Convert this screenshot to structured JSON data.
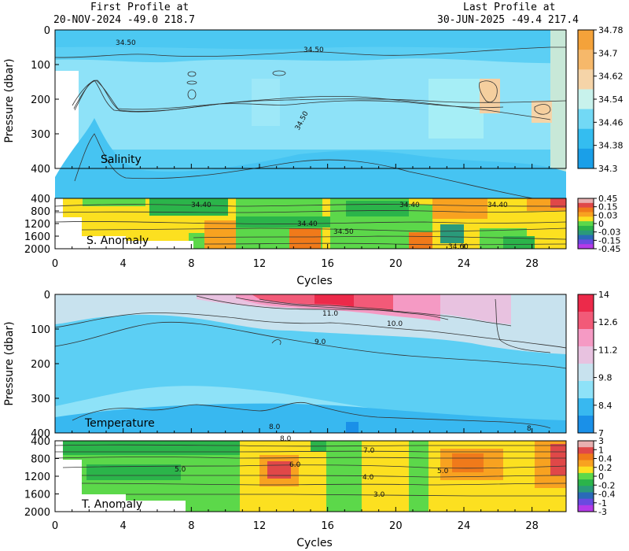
{
  "header": {
    "first_title": "First Profile at",
    "first_info": "20-NOV-2024    -49.0  218.7",
    "last_title": "Last Profile at",
    "last_info": "30-JUN-2025    -49.4  217.4"
  },
  "colors": {
    "frame": "#000000",
    "contour": "#333333"
  },
  "chart_data": [
    {
      "type": "heatmap",
      "title": "Salinity",
      "xlabel": "Cycles",
      "ylabel": "Pressure (dbar)",
      "xlim": [
        0,
        30
      ],
      "ylim": [
        400,
        0
      ],
      "xticks": [
        "0",
        "4",
        "8",
        "12",
        "16",
        "20",
        "24",
        "28"
      ],
      "yticks": [
        "0",
        "100",
        "200",
        "300",
        "400"
      ],
      "colorbar": {
        "ticks": [
          "34.78",
          "34.7",
          "34.62",
          "34.54",
          "34.46",
          "34.38",
          "34.3"
        ],
        "colors": [
          "#f4a23a",
          "#f6b86a",
          "#f5d4a8",
          "#c8f2ec",
          "#72d9f5",
          "#34bdf0",
          "#1a9fe8"
        ]
      },
      "contour_labels": [
        "34.50",
        "34.50",
        "34.50"
      ]
    },
    {
      "type": "heatmap",
      "title": "S. Anomaly",
      "ylabel": "",
      "xlim": [
        0,
        30
      ],
      "ylim": [
        2000,
        400
      ],
      "yticks": [
        "400",
        "800",
        "1200",
        "1600",
        "2000"
      ],
      "colorbar": {
        "ticks": [
          "0.45",
          "0.15",
          "0.03",
          "0",
          "-0.03",
          "-0.15",
          "-0.45"
        ],
        "colors": [
          "#e8b0b0",
          "#e04848",
          "#f07a1a",
          "#f8a220",
          "#fce020",
          "#5cd84a",
          "#2bb44a",
          "#2a9a7a",
          "#2a6ab8",
          "#6a4ae0",
          "#b43ae8"
        ]
      },
      "contour_labels": [
        "34.40",
        "34.40",
        "34.40",
        "34.40",
        "34.50",
        "34.60"
      ]
    },
    {
      "type": "heatmap",
      "title": "Temperature",
      "xlabel": "Cycles",
      "ylabel": "Pressure (dbar)",
      "xlim": [
        0,
        30
      ],
      "ylim": [
        400,
        0
      ],
      "xticks": [
        "0",
        "4",
        "8",
        "12",
        "16",
        "20",
        "24",
        "28"
      ],
      "yticks": [
        "0",
        "100",
        "200",
        "300",
        "400"
      ],
      "colorbar": {
        "ticks": [
          "14",
          "12.6",
          "11.2",
          "9.8",
          "8.4",
          "7"
        ],
        "colors": [
          "#ec2a4a",
          "#f25a78",
          "#f59ac4",
          "#e8c2e0",
          "#c8e2ee",
          "#8ee2f8",
          "#38b8f0",
          "#1a90e8"
        ]
      },
      "contour_labels": [
        "11.0",
        "10.0",
        "9.0",
        "8.0",
        "8"
      ]
    },
    {
      "type": "heatmap",
      "title": "T. Anomaly",
      "ylabel": "",
      "xlim": [
        0,
        30
      ],
      "ylim": [
        2000,
        400
      ],
      "yticks": [
        "400",
        "800",
        "1200",
        "1600",
        "2000"
      ],
      "colorbar": {
        "ticks": [
          "3",
          "1",
          "0.4",
          "0.2",
          "0",
          "-0.2",
          "-0.4",
          "-1",
          "-3"
        ],
        "colors": [
          "#e8b0b0",
          "#e04848",
          "#f07a1a",
          "#f8a220",
          "#fce020",
          "#5cd84a",
          "#2bb44a",
          "#2a9a7a",
          "#2a6ab8",
          "#6a4ae0",
          "#b43ae8"
        ]
      },
      "contour_labels": [
        "8.0",
        "7.0",
        "6.0",
        "5.0",
        "5.0",
        "4.0",
        "3.0"
      ]
    }
  ]
}
